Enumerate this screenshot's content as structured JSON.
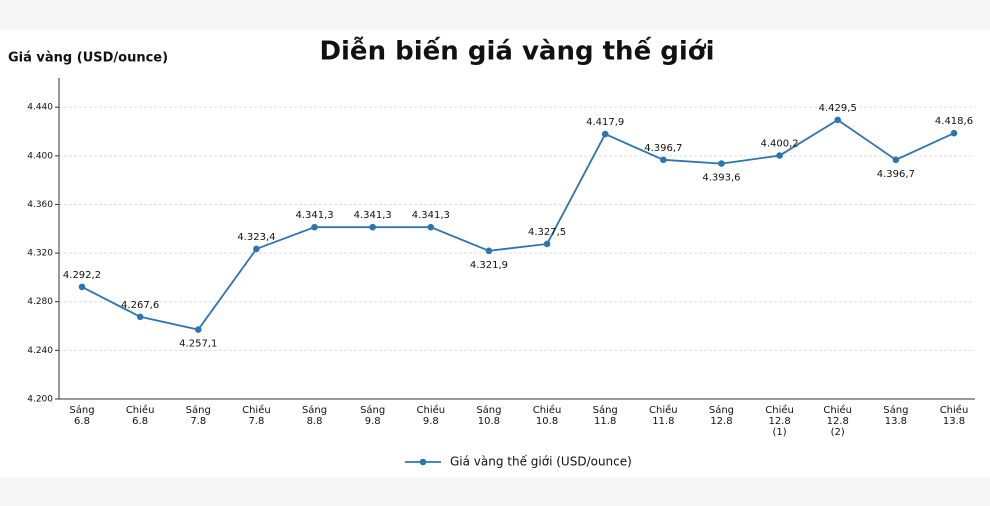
{
  "chart_data": {
    "type": "line",
    "title": "Diễn biến giá vàng thế giới",
    "y_label": "Giá vàng (USD/ounce)",
    "categories": [
      "Sáng\n6.8",
      "Chiều\n6.8",
      "Sáng\n7.8",
      "Chiều\n7.8",
      "Sáng\n8.8",
      "Sáng\n9.8",
      "Chiều\n9.8",
      "Sáng\n10.8",
      "Chiều\n10.8",
      "Sáng\n11.8",
      "Chiều\n11.8",
      "Sáng\n12.8",
      "Chiều\n12.8\n(1)",
      "Chiều\n12.8\n(2)",
      "Sáng\n13.8",
      "Chiều\n13.8"
    ],
    "series": [
      {
        "name": "Giá vàng thế giới (USD/ounce)",
        "color": "#2e75b0",
        "values": [
          4292.2,
          4267.6,
          4257.1,
          4323.4,
          4341.3,
          4341.3,
          4341.3,
          4321.9,
          4327.5,
          4417.9,
          4396.7,
          4393.6,
          4400.2,
          4429.5,
          4396.7,
          4418.6
        ],
        "value_labels": [
          "4.292,2",
          "4.267,6",
          "4.257,1",
          "4.323,4",
          "4.341,3",
          "4.341,3",
          "4.341,3",
          "4.321,9",
          "4.327,5",
          "4.417,9",
          "4.396,7",
          "4.393,6",
          "4.400,2",
          "4.429,5",
          "4.396,7",
          "4.418,6"
        ]
      }
    ],
    "ylim": [
      4200,
      4464
    ],
    "yticks": [
      {
        "value": 4200,
        "label": "4.200"
      },
      {
        "value": 4240,
        "label": "4.240"
      },
      {
        "value": 4280,
        "label": "4.280"
      },
      {
        "value": 4320,
        "label": "4.320"
      },
      {
        "value": 4360,
        "label": "4.360"
      },
      {
        "value": 4400,
        "label": "4.400"
      },
      {
        "value": 4440,
        "label": "4.440"
      }
    ],
    "grid": true,
    "legend": "bottom"
  }
}
